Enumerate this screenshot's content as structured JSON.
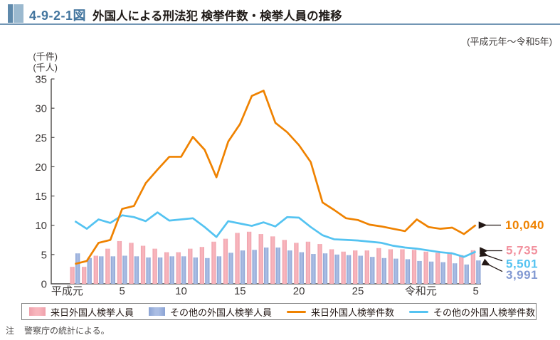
{
  "header": {
    "figure_number": "4-9-2-1図",
    "title": "外国人による刑法犯 検挙件数・検挙人員の推移",
    "period": "(平成元年～令和5年)"
  },
  "chart_data": {
    "type": "bar",
    "subtype": "grouped-bars-with-lines",
    "unit_labels": [
      "(千件)",
      "(千人)"
    ],
    "ylim": [
      0,
      35
    ],
    "ytick_step": 5,
    "grid": false,
    "legend_position": "bottom",
    "categories": [
      "平成元",
      "平成2",
      "平成3",
      "平成4",
      "平成5",
      "平成6",
      "平成7",
      "平成8",
      "平成9",
      "平成10",
      "平成11",
      "平成12",
      "平成13",
      "平成14",
      "平成15",
      "平成16",
      "平成17",
      "平成18",
      "平成19",
      "平成20",
      "平成21",
      "平成22",
      "平成23",
      "平成24",
      "平成25",
      "平成26",
      "平成27",
      "平成28",
      "平成29",
      "平成30",
      "令和元",
      "令和2",
      "令和3",
      "令和4",
      "令和5"
    ],
    "xticks": [
      {
        "index": 0,
        "label": "平成元",
        "era": true
      },
      {
        "index": 4,
        "label": "5",
        "era": false
      },
      {
        "index": 9,
        "label": "10",
        "era": false
      },
      {
        "index": 14,
        "label": "15",
        "era": false
      },
      {
        "index": 19,
        "label": "20",
        "era": false
      },
      {
        "index": 24,
        "label": "25",
        "era": false
      },
      {
        "index": 30,
        "label": "令和元",
        "era": true
      },
      {
        "index": 34,
        "label": "5",
        "era": false
      }
    ],
    "series": [
      {
        "name": "来日外国人検挙人員",
        "type": "bar",
        "color": "#f3a3ad",
        "values": [
          2.9,
          2.9,
          4.8,
          6.0,
          7.3,
          7.0,
          6.5,
          6.0,
          5.4,
          5.4,
          6.0,
          6.3,
          7.2,
          7.7,
          8.7,
          8.9,
          8.5,
          8.1,
          7.5,
          7.0,
          7.2,
          6.8,
          5.9,
          5.5,
          5.7,
          5.7,
          6.1,
          5.9,
          5.9,
          5.8,
          5.5,
          5.3,
          5.4,
          4.9,
          5.735
        ]
      },
      {
        "name": "その他の外国人検挙人員",
        "type": "bar",
        "color": "#93a9d6",
        "values": [
          5.2,
          4.4,
          4.7,
          4.7,
          4.8,
          4.7,
          4.5,
          4.5,
          4.7,
          4.7,
          4.5,
          4.4,
          4.7,
          5.3,
          5.7,
          5.8,
          6.2,
          6.2,
          5.7,
          5.4,
          5.1,
          5.2,
          5.0,
          4.9,
          4.8,
          4.6,
          4.4,
          4.3,
          4.2,
          3.9,
          3.8,
          3.7,
          3.5,
          3.3,
          3.991
        ]
      },
      {
        "name": "来日外国人検挙件数",
        "type": "line",
        "color": "#ef8200",
        "values": [
          3.4,
          3.9,
          7.0,
          7.5,
          12.8,
          13.3,
          17.2,
          19.5,
          21.7,
          21.7,
          25.1,
          22.9,
          18.2,
          24.3,
          27.3,
          32.1,
          33.0,
          27.5,
          25.9,
          23.7,
          20.8,
          13.9,
          12.6,
          11.2,
          10.9,
          10.1,
          9.8,
          9.4,
          9.0,
          11.0,
          9.7,
          9.4,
          9.6,
          8.5,
          10.04
        ]
      },
      {
        "name": "その他の外国人検挙件数",
        "type": "line",
        "color": "#54c3f1",
        "values": [
          10.7,
          9.4,
          11.0,
          10.4,
          11.7,
          11.4,
          10.7,
          12.2,
          10.8,
          11.0,
          11.2,
          9.7,
          8.0,
          10.7,
          10.3,
          9.9,
          10.5,
          9.8,
          11.4,
          11.3,
          9.7,
          8.3,
          7.6,
          7.5,
          7.4,
          7.2,
          7.0,
          6.5,
          6.2,
          6.0,
          5.7,
          5.4,
          5.2,
          4.6,
          5.501
        ]
      }
    ],
    "annotations": [
      {
        "label": "10,040",
        "color": "#ef8200",
        "series": "来日外国人検挙件数",
        "value": 10040
      },
      {
        "label": "5,735",
        "color": "#f2919e",
        "series": "来日外国人検挙人員",
        "value": 5735
      },
      {
        "label": "5,501",
        "color": "#54c3f1",
        "series": "その他の外国人検挙件数",
        "value": 5501
      },
      {
        "label": "3,991",
        "color": "#8299d2",
        "series": "その他の外国人検挙人員",
        "value": 3991
      }
    ]
  },
  "legend": {
    "items": [
      {
        "label": "来日外国人検挙人員",
        "swatch": "bar-pink"
      },
      {
        "label": "その他の外国人検挙人員",
        "swatch": "bar-blue"
      },
      {
        "label": "来日外国人検挙件数",
        "swatch": "line-orange"
      },
      {
        "label": "その他の外国人検挙件数",
        "swatch": "line-cyan"
      }
    ]
  },
  "note": {
    "prefix": "注",
    "text": "警察庁の統計による。"
  }
}
